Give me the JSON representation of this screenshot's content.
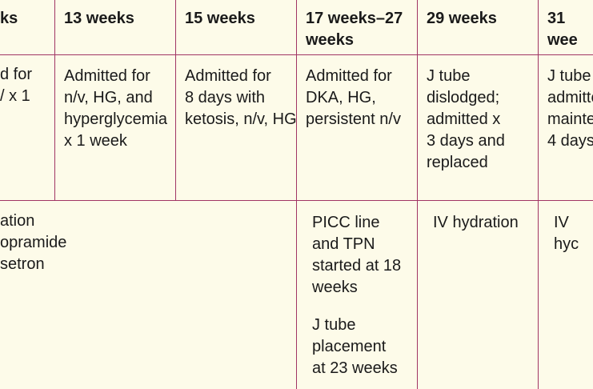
{
  "columns": [
    {
      "header": "ks",
      "admission": "d for\n/ x 1"
    },
    {
      "header": "13 weeks",
      "admission": "Admitted for\nn/v, HG, and\nhyperglycemia\nx 1 week"
    },
    {
      "header": "15 weeks",
      "admission": "Admitted for\n8 days with\nketosis, n/v, HG"
    },
    {
      "header": "17 weeks–27\nweeks",
      "admission": "Admitted for\nDKA, HG,\npersistent n/v"
    },
    {
      "header": "29 weeks",
      "admission": "J tube\ndislodged;\nadmitted x\n3 days and\nreplaced"
    },
    {
      "header": "31 wee",
      "admission": "J tube\nadmitte\nmainte\n4 days"
    }
  ],
  "treatment_row": {
    "merged_cell": "ation\nopramide\nsetron",
    "col_17_27": [
      "PICC line\nand TPN\nstarted at 18\nweeks",
      "J tube\nplacement\nat 23 weeks"
    ],
    "col_29": "IV hydration",
    "col_31": "IV hyc"
  },
  "colors": {
    "rule": "#a13564",
    "background": "#fdfbe9"
  }
}
